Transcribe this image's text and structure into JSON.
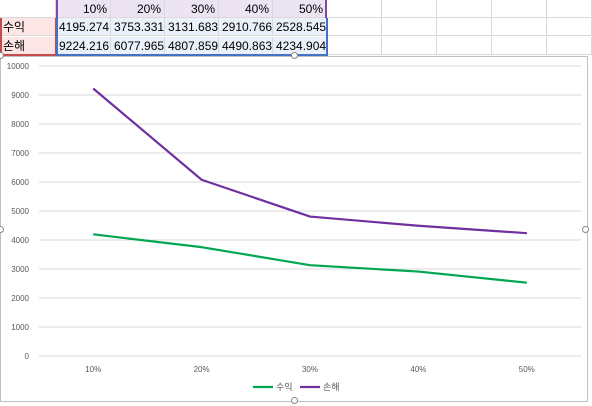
{
  "sheet": {
    "headers": [
      "10%",
      "20%",
      "30%",
      "40%",
      "50%"
    ],
    "rows": [
      {
        "label": "수익",
        "values": [
          "4195.274",
          "3753.331",
          "3131.683",
          "2910.766",
          "2528.545"
        ]
      },
      {
        "label": "손해",
        "values": [
          "9224.216",
          "6077.965",
          "4807.859",
          "4490.863",
          "4234.904"
        ]
      }
    ]
  },
  "chart_data": {
    "type": "line",
    "categories": [
      "10%",
      "20%",
      "30%",
      "40%",
      "50%"
    ],
    "series": [
      {
        "name": "수익",
        "values": [
          4195.274,
          3753.331,
          3131.683,
          2910.766,
          2528.545
        ],
        "color": "#00a650"
      },
      {
        "name": "손해",
        "values": [
          9224.216,
          6077.965,
          4807.859,
          4490.863,
          4234.904
        ],
        "color": "#7030a0"
      }
    ],
    "ylim": [
      0,
      10000
    ],
    "yticks": [
      "0",
      "1000",
      "2000",
      "3000",
      "4000",
      "5000",
      "6000",
      "7000",
      "8000",
      "9000",
      "10000"
    ],
    "grid": true,
    "legend": "bottom"
  }
}
